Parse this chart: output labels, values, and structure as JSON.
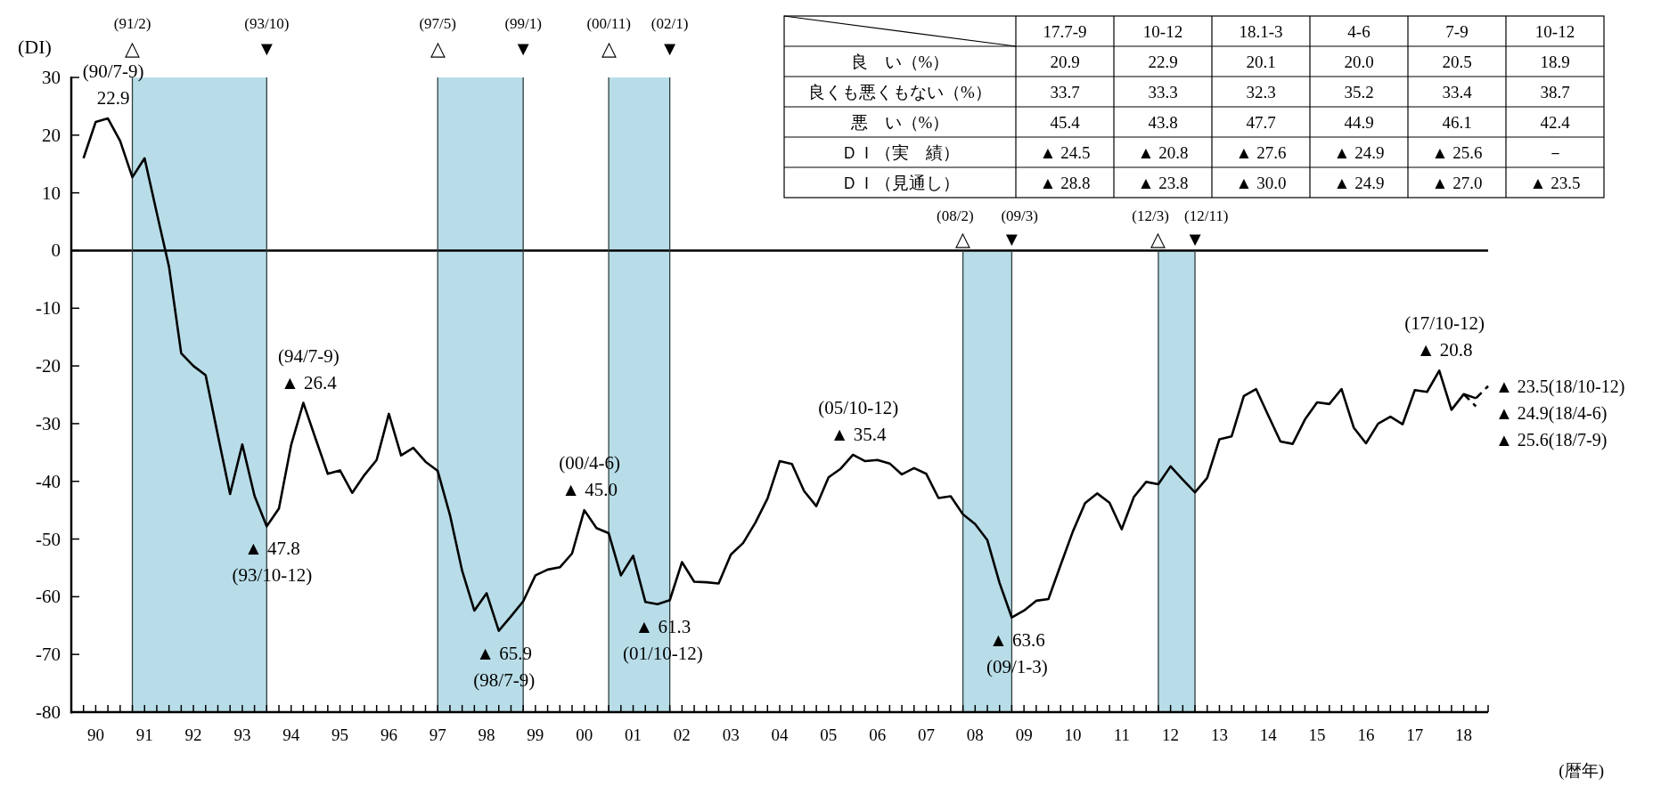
{
  "chart_data": [
    {
      "type": "line",
      "ylabel": "(DI)",
      "xlabel": "(暦年)",
      "xlim": [
        "1990-01",
        "2019-01"
      ],
      "ylim": [
        -80,
        30
      ],
      "yticks": [
        -80,
        -70,
        -60,
        -50,
        -40,
        -30,
        -20,
        -10,
        0,
        10,
        20,
        30
      ],
      "xticks": [
        {
          "value": "1990-04",
          "label": null
        },
        {
          "value": "1990-07",
          "label": "90"
        },
        {
          "value": "1990-10",
          "label": null
        },
        {
          "value": "1991-01",
          "label": null
        },
        {
          "value": "1991-04",
          "label": null
        },
        {
          "value": "1991-07",
          "label": "91"
        },
        {
          "value": "1991-10",
          "label": null
        },
        {
          "value": "1992-01",
          "label": null
        },
        {
          "value": "1992-04",
          "label": null
        },
        {
          "value": "1992-07",
          "label": "92"
        },
        {
          "value": "1992-10",
          "label": null
        },
        {
          "value": "1993-01",
          "label": null
        },
        {
          "value": "1993-04",
          "label": null
        },
        {
          "value": "1993-07",
          "label": "93"
        },
        {
          "value": "1993-10",
          "label": null
        },
        {
          "value": "1994-01",
          "label": null
        },
        {
          "value": "1994-04",
          "label": null
        },
        {
          "value": "1994-07",
          "label": "94"
        },
        {
          "value": "1994-10",
          "label": null
        },
        {
          "value": "1995-01",
          "label": null
        },
        {
          "value": "1995-04",
          "label": null
        },
        {
          "value": "1995-07",
          "label": "95"
        },
        {
          "value": "1995-10",
          "label": null
        },
        {
          "value": "1996-01",
          "label": null
        },
        {
          "value": "1996-04",
          "label": null
        },
        {
          "value": "1996-07",
          "label": "96"
        },
        {
          "value": "1996-10",
          "label": null
        },
        {
          "value": "1997-01",
          "label": null
        },
        {
          "value": "1997-04",
          "label": null
        },
        {
          "value": "1997-07",
          "label": "97"
        },
        {
          "value": "1997-10",
          "label": null
        },
        {
          "value": "1998-01",
          "label": null
        },
        {
          "value": "1998-04",
          "label": null
        },
        {
          "value": "1998-07",
          "label": "98"
        },
        {
          "value": "1998-10",
          "label": null
        },
        {
          "value": "1999-01",
          "label": null
        },
        {
          "value": "1999-04",
          "label": null
        },
        {
          "value": "1999-07",
          "label": "99"
        },
        {
          "value": "1999-10",
          "label": null
        },
        {
          "value": "2000-01",
          "label": null
        },
        {
          "value": "2000-04",
          "label": null
        },
        {
          "value": "2000-07",
          "label": "00"
        },
        {
          "value": "2000-10",
          "label": null
        },
        {
          "value": "2001-01",
          "label": null
        },
        {
          "value": "2001-04",
          "label": null
        },
        {
          "value": "2001-07",
          "label": "01"
        },
        {
          "value": "2001-10",
          "label": null
        },
        {
          "value": "2002-01",
          "label": null
        },
        {
          "value": "2002-04",
          "label": null
        },
        {
          "value": "2002-07",
          "label": "02"
        },
        {
          "value": "2002-10",
          "label": null
        },
        {
          "value": "2003-01",
          "label": null
        },
        {
          "value": "2003-04",
          "label": null
        },
        {
          "value": "2003-07",
          "label": "03"
        },
        {
          "value": "2003-10",
          "label": null
        },
        {
          "value": "2004-01",
          "label": null
        },
        {
          "value": "2004-04",
          "label": null
        },
        {
          "value": "2004-07",
          "label": "04"
        },
        {
          "value": "2004-10",
          "label": null
        },
        {
          "value": "2005-01",
          "label": null
        },
        {
          "value": "2005-04",
          "label": null
        },
        {
          "value": "2005-07",
          "label": "05"
        },
        {
          "value": "2005-10",
          "label": null
        },
        {
          "value": "2006-01",
          "label": null
        },
        {
          "value": "2006-04",
          "label": null
        },
        {
          "value": "2006-07",
          "label": "06"
        },
        {
          "value": "2006-10",
          "label": null
        },
        {
          "value": "2007-01",
          "label": null
        },
        {
          "value": "2007-04",
          "label": null
        },
        {
          "value": "2007-07",
          "label": "07"
        },
        {
          "value": "2007-10",
          "label": null
        },
        {
          "value": "2008-01",
          "label": null
        },
        {
          "value": "2008-04",
          "label": null
        },
        {
          "value": "2008-07",
          "label": "08"
        },
        {
          "value": "2008-10",
          "label": null
        },
        {
          "value": "2009-01",
          "label": null
        },
        {
          "value": "2009-04",
          "label": null
        },
        {
          "value": "2009-07",
          "label": "09"
        },
        {
          "value": "2009-10",
          "label": null
        },
        {
          "value": "2010-01",
          "label": null
        },
        {
          "value": "2010-04",
          "label": null
        },
        {
          "value": "2010-07",
          "label": "10"
        },
        {
          "value": "2010-10",
          "label": null
        },
        {
          "value": "2011-01",
          "label": null
        },
        {
          "value": "2011-04",
          "label": null
        },
        {
          "value": "2011-07",
          "label": "11"
        },
        {
          "value": "2011-10",
          "label": null
        },
        {
          "value": "2012-01",
          "label": null
        },
        {
          "value": "2012-04",
          "label": null
        },
        {
          "value": "2012-07",
          "label": "12"
        },
        {
          "value": "2012-10",
          "label": null
        },
        {
          "value": "2013-01",
          "label": null
        },
        {
          "value": "2013-04",
          "label": null
        },
        {
          "value": "2013-07",
          "label": "13"
        },
        {
          "value": "2013-10",
          "label": null
        },
        {
          "value": "2014-01",
          "label": null
        },
        {
          "value": "2014-04",
          "label": null
        },
        {
          "value": "2014-07",
          "label": "14"
        },
        {
          "value": "2014-10",
          "label": null
        },
        {
          "value": "2015-01",
          "label": null
        },
        {
          "value": "2015-04",
          "label": null
        },
        {
          "value": "2015-07",
          "label": "15"
        },
        {
          "value": "2015-10",
          "label": null
        },
        {
          "value": "2016-01",
          "label": null
        },
        {
          "value": "2016-04",
          "label": null
        },
        {
          "value": "2016-07",
          "label": "16"
        },
        {
          "value": "2016-10",
          "label": null
        },
        {
          "value": "2017-01",
          "label": null
        },
        {
          "value": "2017-04",
          "label": null
        },
        {
          "value": "2017-07",
          "label": "17"
        },
        {
          "value": "2017-10",
          "label": null
        },
        {
          "value": "2018-01",
          "label": null
        },
        {
          "value": "2018-04",
          "label": null
        },
        {
          "value": "2018-07",
          "label": "18"
        },
        {
          "value": "2018-10",
          "label": null
        },
        {
          "value": "2019-01",
          "label": null
        }
      ],
      "x": [
        "1990-04",
        "1990-07",
        "1990-10",
        "1991-01",
        "1991-04",
        "1991-07",
        "1991-10",
        "1992-01",
        "1992-04",
        "1992-07",
        "1992-10",
        "1993-01",
        "1993-04",
        "1993-07",
        "1993-10",
        "1994-01",
        "1994-04",
        "1994-07",
        "1994-10",
        "1995-01",
        "1995-04",
        "1995-07",
        "1995-10",
        "1996-01",
        "1996-04",
        "1996-07",
        "1996-10",
        "1997-01",
        "1997-04",
        "1997-07",
        "1997-10",
        "1998-01",
        "1998-04",
        "1998-07",
        "1998-10",
        "1999-01",
        "1999-04",
        "1999-07",
        "1999-10",
        "2000-01",
        "2000-04",
        "2000-07",
        "2000-10",
        "2001-01",
        "2001-04",
        "2001-07",
        "2001-10",
        "2002-01",
        "2002-04",
        "2002-07",
        "2002-10",
        "2003-01",
        "2003-04",
        "2003-07",
        "2003-10",
        "2004-01",
        "2004-04",
        "2004-07",
        "2004-10",
        "2005-01",
        "2005-04",
        "2005-07",
        "2005-10",
        "2006-01",
        "2006-04",
        "2006-07",
        "2006-10",
        "2007-01",
        "2007-04",
        "2007-07",
        "2007-10",
        "2008-01",
        "2008-04",
        "2008-07",
        "2008-10",
        "2009-01",
        "2009-04",
        "2009-07",
        "2009-10",
        "2010-01",
        "2010-04",
        "2010-07",
        "2010-10",
        "2011-01",
        "2011-04",
        "2011-07",
        "2011-10",
        "2012-01",
        "2012-04",
        "2012-07",
        "2012-10",
        "2013-01",
        "2013-04",
        "2013-07",
        "2013-10",
        "2014-01",
        "2014-04",
        "2014-07",
        "2014-10",
        "2015-01",
        "2015-04",
        "2015-07",
        "2015-10",
        "2016-01",
        "2016-04",
        "2016-07",
        "2016-10",
        "2017-01",
        "2017-04",
        "2017-07",
        "2017-10",
        "2018-01",
        "2018-04",
        "2018-07",
        "2018-10"
      ],
      "series": [
        {
          "color": "#000000",
          "values": [
            16.0,
            22.3,
            22.9,
            19.0,
            12.7,
            16.0,
            6.5,
            -2.8,
            -17.8,
            -20.0,
            -21.6,
            -32.0,
            -42.2,
            -33.6,
            -42.5,
            -47.8,
            -44.7,
            -33.7,
            -26.4,
            -32.6,
            -38.7,
            -38.1,
            -42.0,
            -38.9,
            -36.3,
            -28.3,
            -35.5,
            -34.2,
            -36.6,
            -38.2,
            -45.8,
            -55.5,
            -62.4,
            -59.4,
            -65.9,
            -63.4,
            -60.8,
            -56.3,
            -55.3,
            -54.9,
            -52.5,
            -45.0,
            -48.1,
            -49.0,
            -56.3,
            -52.9,
            -60.9,
            -61.3,
            -60.6,
            -54.0,
            -57.4,
            -57.5,
            -57.7,
            -52.7,
            -50.7,
            -47.2,
            -43.0,
            -36.5,
            -37.0,
            -41.7,
            -44.3,
            -39.3,
            -37.8,
            -35.4,
            -36.5,
            -36.3,
            -36.9,
            -38.8,
            -37.7,
            -38.7,
            -42.9,
            -42.6,
            -45.7,
            -47.4,
            -50.2,
            -57.6,
            -63.6,
            -62.4,
            -60.7,
            -60.4,
            -54.5,
            -48.7,
            -43.8,
            -42.1,
            -43.7,
            -48.3,
            -42.7,
            -40.1,
            -40.5,
            -37.4,
            -39.7,
            -41.9,
            -39.4,
            -32.7,
            -32.2,
            -25.2,
            -24.0,
            -28.6,
            -33.1,
            -33.5,
            -29.3,
            -26.3,
            -26.6,
            -24.0,
            -30.7,
            -33.4,
            -30.0,
            -28.8,
            -30.1,
            -24.2,
            -24.5,
            -20.8,
            -27.6,
            -24.9,
            -25.6
          ]
        },
        {
          "color": "#000000",
          "line_style": "dashed",
          "x": [
            "2018-07",
            "2018-10"
          ],
          "values": [
            -24.9,
            -27.0
          ]
        },
        {
          "color": "#000000",
          "line_style": "dashed",
          "x": [
            "2018-10",
            "2019-01"
          ],
          "values": [
            -25.6,
            -23.5
          ]
        }
      ],
      "bands": [
        {
          "axis": "x",
          "from": "1991-04",
          "to": "1994-01",
          "color": "#b8dde8"
        },
        {
          "axis": "x",
          "from": "1997-07",
          "to": "1999-04",
          "color": "#b8dde8"
        },
        {
          "axis": "x",
          "from": "2001-01",
          "to": "2002-04",
          "color": "#b8dde8"
        },
        {
          "axis": "x",
          "from": "2008-04",
          "to": "2009-04",
          "color": "#b8dde8"
        },
        {
          "axis": "x",
          "from": "2012-04",
          "to": "2013-01",
          "color": "#b8dde8"
        }
      ],
      "ref_lines": [
        {
          "axis": "y",
          "value": 0,
          "color": "#000000"
        },
        {
          "axis": "x",
          "value": "1991-04",
          "label": "(91/2)△",
          "color": "#2f3f3f"
        },
        {
          "axis": "x",
          "value": "1994-01",
          "label": "(93/10)▼",
          "color": "#2f3f3f"
        },
        {
          "axis": "x",
          "value": "1997-07",
          "label": "(97/5)△",
          "color": "#2f3f3f"
        },
        {
          "axis": "x",
          "value": "1999-04",
          "label": "(99/1)▼",
          "color": "#2f3f3f"
        },
        {
          "axis": "x",
          "value": "2001-01",
          "label": "(00/11)△",
          "color": "#2f3f3f"
        },
        {
          "axis": "x",
          "value": "2002-04",
          "label": "(02/1)▼",
          "color": "#2f3f3f"
        },
        {
          "axis": "x",
          "value": "2008-04",
          "label": "(08/2)△",
          "color": "#2f3f3f"
        },
        {
          "axis": "x",
          "value": "2009-04",
          "label": "(09/3)▼",
          "color": "#2f3f3f"
        },
        {
          "axis": "x",
          "value": "2012-04",
          "label": "(12/3)△",
          "color": "#2f3f3f"
        },
        {
          "axis": "x",
          "value": "2013-01",
          "label": "(12/11)▼",
          "color": "#2f3f3f"
        }
      ],
      "annotations": [
        {
          "text": "(90/7-9)\n22.9",
          "x": "1990-10",
          "y": 22.9
        },
        {
          "text": "▲ 47.8\n(93/10-12)",
          "x": "1994-01",
          "y": -47.8
        },
        {
          "text": "(94/7-9)\n▲ 26.4",
          "x": "1994-10",
          "y": -26.4
        },
        {
          "text": "▲ 65.9\n(98/7-9)",
          "x": "1998-10",
          "y": -65.9
        },
        {
          "text": "(00/4-6)\n▲ 45.0",
          "x": "2000-07",
          "y": -45.0
        },
        {
          "text": "▲ 61.3\n(01/10-12)",
          "x": "2002-01",
          "y": -61.3
        },
        {
          "text": "(05/10-12)\n▲ 35.4",
          "x": "2006-01",
          "y": -35.4
        },
        {
          "text": "▲ 63.6\n(09/1-3)",
          "x": "2009-04",
          "y": -63.6
        },
        {
          "text": "(17/10-12)\n▲ 20.8",
          "x": "2018-01",
          "y": -20.8
        },
        {
          "text": "▲ 23.5(18/10-12)",
          "x": "2019-01",
          "y": -23.5
        },
        {
          "text": "▲ 24.9(18/4-6)",
          "x": "2018-07",
          "y": -24.9
        },
        {
          "text": "▲ 25.6(18/7-9)",
          "x": "2018-10",
          "y": -25.6
        }
      ]
    },
    {
      "type": "other",
      "categories": [
        "17.7-9",
        "10-12",
        "18.1-3",
        "4-6",
        "7-9",
        "10-12"
      ],
      "y_categories": [
        "良　い（%）",
        "良くも悪くもない（%）",
        "悪　い（%）",
        "ＤＩ（実　績）",
        "ＤＩ（見通し）"
      ],
      "cell_labels": [
        [
          "20.9",
          "22.9",
          "20.1",
          "20.0",
          "20.5",
          "18.9"
        ],
        [
          "33.7",
          "33.3",
          "32.3",
          "35.2",
          "33.4",
          "38.7"
        ],
        [
          "45.4",
          "43.8",
          "47.7",
          "44.9",
          "46.1",
          "42.4"
        ],
        [
          "▲ 24.5",
          "▲ 20.8",
          "▲ 27.6",
          "▲ 24.9",
          "▲ 25.6",
          "－"
        ],
        [
          "▲ 28.8",
          "▲ 23.8",
          "▲ 30.0",
          "▲ 24.9",
          "▲ 27.0",
          "▲ 23.5"
        ]
      ]
    }
  ]
}
